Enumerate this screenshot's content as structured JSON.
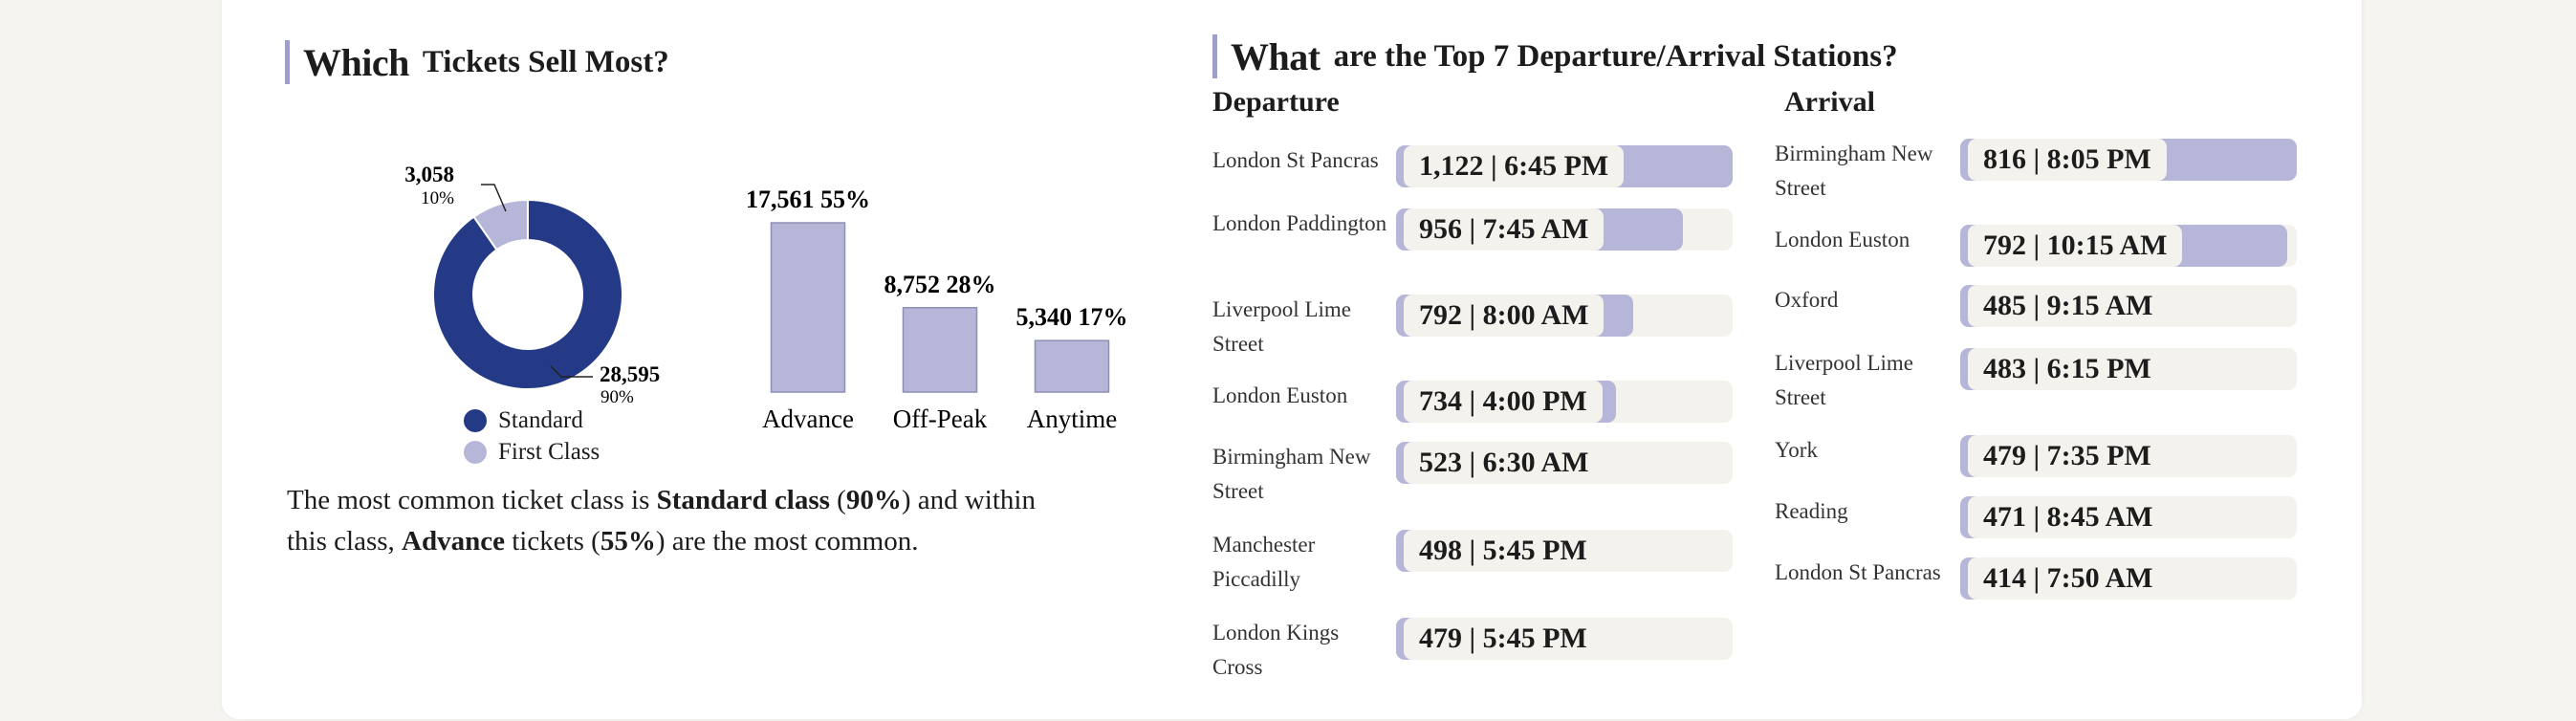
{
  "colors": {
    "standard": "#243a87",
    "first_class": "#b6b6d9",
    "bar": "#b6b6d9",
    "accent": "#9f9fcc"
  },
  "left": {
    "title_bold": "Which",
    "title_rest": "Tickets Sell Most?",
    "legend": [
      {
        "label": "Standard",
        "color": "#243a87"
      },
      {
        "label": "First Class",
        "color": "#b6b6d9"
      }
    ],
    "note": {
      "p1": "The most common ticket class is ",
      "b1": "Standard class",
      "p2": " (",
      "b2": "90%",
      "p3": ") and within this class, ",
      "b3": "Advance",
      "p4": " tickets (",
      "b4": "55%",
      "p5": ") are the most common."
    }
  },
  "chart_data": [
    {
      "type": "pie",
      "labels": [
        "Standard",
        "First Class"
      ],
      "values": [
        28595,
        3058
      ],
      "value_labels": [
        "28,595",
        "3,058"
      ],
      "percent_labels": [
        "90%",
        "10%"
      ]
    },
    {
      "type": "bar",
      "categories": [
        "Advance",
        "Off-Peak",
        "Anytime"
      ],
      "values": [
        17561,
        8752,
        5340
      ],
      "value_labels": [
        "17,561 55%",
        "8,752 28%",
        "5,340 17%"
      ],
      "ylim": [
        0,
        17561
      ]
    },
    {
      "type": "bar",
      "title": "Departure",
      "categories": [
        "London St Pancras",
        "London Paddington",
        "Liverpool Lime Street",
        "London Euston",
        "Birmingham New Street",
        "Manchester Piccadilly",
        "London Kings Cross"
      ],
      "values": [
        1122,
        956,
        792,
        734,
        523,
        498,
        479
      ],
      "times": [
        "6:45 PM",
        "7:45 AM",
        "8:00 AM",
        "4:00 PM",
        "6:30 AM",
        "5:45 PM",
        "5:45 PM"
      ]
    },
    {
      "type": "bar",
      "title": "Arrival",
      "categories": [
        "Birmingham New Street",
        "London Euston",
        "Oxford",
        "Liverpool Lime Street",
        "York",
        "Reading",
        "London St Pancras"
      ],
      "values": [
        816,
        792,
        485,
        483,
        479,
        471,
        414
      ],
      "times": [
        "8:05 PM",
        "10:15 AM",
        "9:15 AM",
        "6:15 PM",
        "7:35 PM",
        "8:45 AM",
        "7:50 AM"
      ]
    }
  ],
  "right": {
    "title_bold": "What",
    "title_rest": "are the Top 7 Departure/Arrival Stations?",
    "departure_head": "Departure",
    "arrival_head": "Arrival",
    "sep": " | "
  }
}
